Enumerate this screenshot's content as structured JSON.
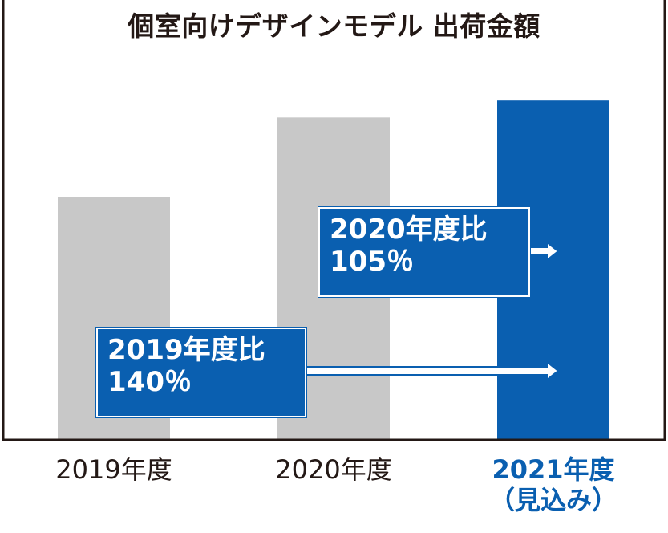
{
  "chart_data": {
    "type": "bar",
    "title": "個室向けデザインモデル 出荷金額",
    "categories": [
      "2019年度",
      "2020年度",
      "2021年度\n（見込み）"
    ],
    "values": [
      100,
      133,
      140
    ],
    "ylim": [
      0,
      150
    ],
    "grid": false,
    "colors": [
      "#c8c8c8",
      "#c8c8c8",
      "#0a5fb0"
    ],
    "highlight_category": 2,
    "annotations": [
      {
        "line1": "2020年度比",
        "line2": "105％",
        "from": 1,
        "to": 2
      },
      {
        "line1": "2019年度比",
        "line2": "140％",
        "from": 0,
        "to": 2
      }
    ]
  }
}
